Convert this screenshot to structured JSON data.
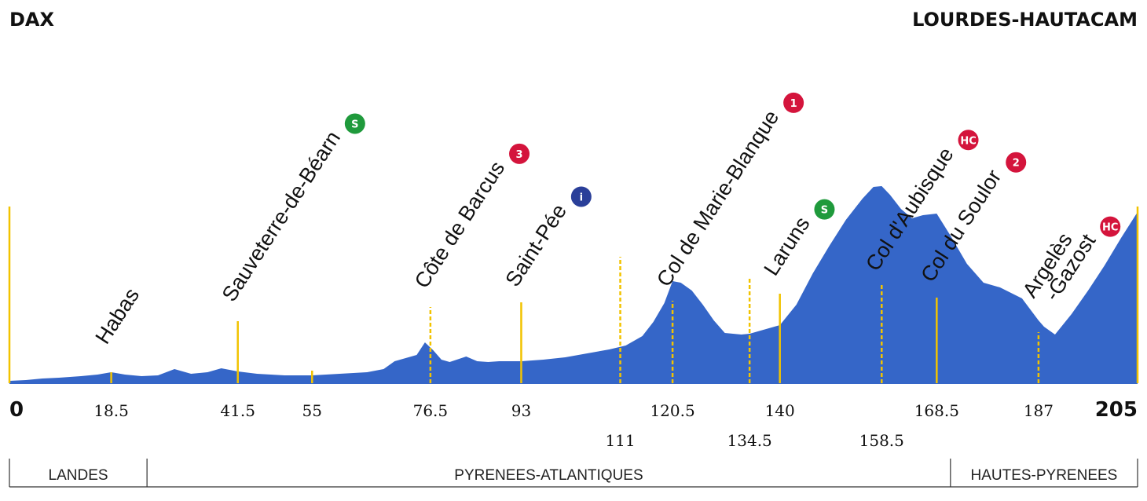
{
  "chart_data": {
    "type": "area",
    "start_label": "DAX",
    "finish_label": "LOURDES-HAUTACAM",
    "colors": {
      "profile": "#3566c8",
      "marker": "#f2c300",
      "cat_1": "#d4143c",
      "cat_2": "#d4143c",
      "cat_3": "#d4143c",
      "cat_hc": "#d4143c",
      "sprint": "#1f9a3c",
      "feed": "#2a3f99"
    },
    "profile": {
      "x": [
        0,
        3,
        6,
        9,
        13,
        16,
        18.5,
        21,
        24,
        27,
        30,
        33,
        36,
        38.5,
        41.5,
        45,
        50,
        55,
        60,
        65,
        68,
        70,
        72,
        74,
        75.5,
        77,
        78.5,
        80,
        83,
        85,
        87,
        89,
        93,
        97,
        101,
        105,
        109,
        112,
        115,
        117,
        119,
        120.5,
        122,
        124,
        126,
        128,
        130,
        133,
        134.5,
        137,
        140,
        143,
        146,
        149,
        152,
        155,
        157,
        158.5,
        160,
        162,
        164,
        166,
        168.5,
        171,
        174,
        177,
        180,
        184,
        187,
        188,
        190,
        193,
        196,
        199,
        202,
        205
      ],
      "y": [
        3,
        4,
        6,
        7,
        9,
        11,
        14,
        11,
        9,
        10,
        18,
        12,
        14,
        19,
        15,
        12,
        10,
        10,
        12,
        14,
        18,
        28,
        32,
        36,
        52,
        42,
        30,
        27,
        34,
        28,
        27,
        28,
        28,
        30,
        33,
        38,
        43,
        48,
        60,
        78,
        102,
        130,
        128,
        118,
        100,
        80,
        64,
        62,
        63,
        68,
        74,
        100,
        140,
        175,
        208,
        235,
        250,
        251,
        240,
        222,
        210,
        214,
        216,
        188,
        152,
        128,
        122,
        108,
        80,
        72,
        62,
        88,
        118,
        150,
        185,
        218
      ]
    },
    "ylim": [
      0,
      330
    ],
    "xlim": [
      0,
      205
    ],
    "x_ticks": [
      {
        "label": "0",
        "x": 0,
        "row": 1,
        "style": "bold"
      },
      {
        "label": "18.5",
        "x": 18.5,
        "row": 1
      },
      {
        "label": "41.5",
        "x": 41.5,
        "row": 1
      },
      {
        "label": "55",
        "x": 55,
        "row": 1
      },
      {
        "label": "76.5",
        "x": 76.5,
        "row": 1
      },
      {
        "label": "93",
        "x": 93,
        "row": 1
      },
      {
        "label": "111",
        "x": 111,
        "row": 2
      },
      {
        "label": "120.5",
        "x": 120.5,
        "row": 1
      },
      {
        "label": "134.5",
        "x": 134.5,
        "row": 2
      },
      {
        "label": "140",
        "x": 140,
        "row": 1
      },
      {
        "label": "158.5",
        "x": 158.5,
        "row": 2
      },
      {
        "label": "168.5",
        "x": 168.5,
        "row": 1
      },
      {
        "label": "187",
        "x": 187,
        "row": 1
      },
      {
        "label": "205",
        "x": 205,
        "row": 1,
        "style": "bold"
      }
    ],
    "markers": [
      {
        "x": 0,
        "height": 225,
        "dashed": false
      },
      {
        "x": 18.5,
        "height": 14,
        "dashed": false
      },
      {
        "x": 41.5,
        "height": 79,
        "dashed": false
      },
      {
        "x": 55,
        "height": 16,
        "dashed": false
      },
      {
        "x": 76.5,
        "height": 97,
        "dashed": true
      },
      {
        "x": 93,
        "height": 103,
        "dashed": false
      },
      {
        "x": 111,
        "height": 161,
        "dashed": true
      },
      {
        "x": 120.5,
        "height": 105,
        "dashed": true
      },
      {
        "x": 134.5,
        "height": 136,
        "dashed": true
      },
      {
        "x": 140,
        "height": 114,
        "dashed": false
      },
      {
        "x": 158.5,
        "height": 126,
        "dashed": true
      },
      {
        "x": 168.5,
        "height": 109,
        "dashed": false
      },
      {
        "x": 187,
        "height": 65,
        "dashed": true
      },
      {
        "x": 205,
        "height": 225,
        "dashed": false
      }
    ],
    "places": [
      {
        "name": "Habas",
        "x": 18.5,
        "height": 38,
        "badge": ""
      },
      {
        "name": "Sauveterre-de-Béarn",
        "x": 41.5,
        "height": 92,
        "badge": "sprint"
      },
      {
        "name": "Côte de Barcus",
        "x": 76.5,
        "height": 109,
        "badge": "cat_3",
        "badge_text": "3"
      },
      {
        "name": "Saint-Pée",
        "x": 93,
        "height": 111,
        "badge": "feed",
        "badge_text": "i"
      },
      {
        "name": "Col de Marie-Blanque",
        "x": 120.5,
        "height": 111,
        "badge": "cat_1",
        "badge_text": "1"
      },
      {
        "name": "Laruns",
        "x": 140,
        "height": 125,
        "badge": "sprint"
      },
      {
        "name": "Col d'Aubisque",
        "x": 158.5,
        "height": 131,
        "badge": "cat_hc",
        "badge_text": "HC"
      },
      {
        "name": "Col du Soulor",
        "x": 168.5,
        "height": 117,
        "badge": "cat_2",
        "badge_text": "2"
      },
      {
        "name": "Argelès",
        "x": 187,
        "height": 97,
        "badge": ""
      },
      {
        "name": "-Gazost",
        "x": 191,
        "height": 93,
        "badge": "cat_hc",
        "badge_text": "HC"
      }
    ],
    "regions": [
      {
        "label": "LANDES",
        "from": 0,
        "to": 25
      },
      {
        "label": "PYRENEES-ATLANTIQUES",
        "from": 25,
        "to": 171
      },
      {
        "label": "HAUTES-PYRENEES",
        "from": 171,
        "to": 205
      }
    ]
  }
}
